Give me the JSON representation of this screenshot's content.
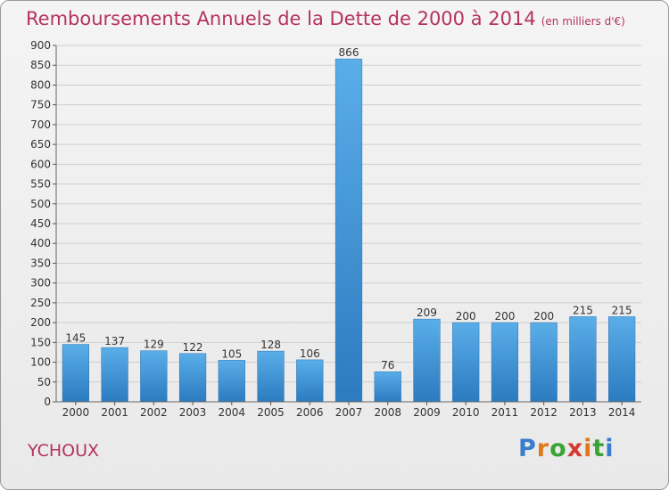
{
  "title": "Remboursements Annuels de la Dette de 2000 à 2014",
  "subtitle": "(en milliers d'€)",
  "place": "YCHOUX",
  "logo": {
    "letters": [
      "P",
      "r",
      "o",
      "x",
      "i",
      "t",
      "i"
    ],
    "colors": [
      "#3a7ecb",
      "#e0791b",
      "#3aa336",
      "#d43a2f",
      "#e0791b",
      "#3aa336",
      "#3a7ecb"
    ]
  },
  "chart_data": {
    "type": "bar",
    "categories": [
      "2000",
      "2001",
      "2002",
      "2003",
      "2004",
      "2005",
      "2006",
      "2007",
      "2008",
      "2009",
      "2010",
      "2011",
      "2012",
      "2013",
      "2014"
    ],
    "values": [
      145,
      137,
      129,
      122,
      105,
      128,
      106,
      866,
      76,
      209,
      200,
      200,
      200,
      215,
      215
    ],
    "ylim": [
      0,
      900
    ],
    "yticks": [
      0,
      50,
      100,
      150,
      200,
      250,
      300,
      350,
      400,
      450,
      500,
      550,
      600,
      650,
      700,
      750,
      800,
      850,
      900
    ],
    "grid": true,
    "bar_color": "#3f92d6"
  }
}
